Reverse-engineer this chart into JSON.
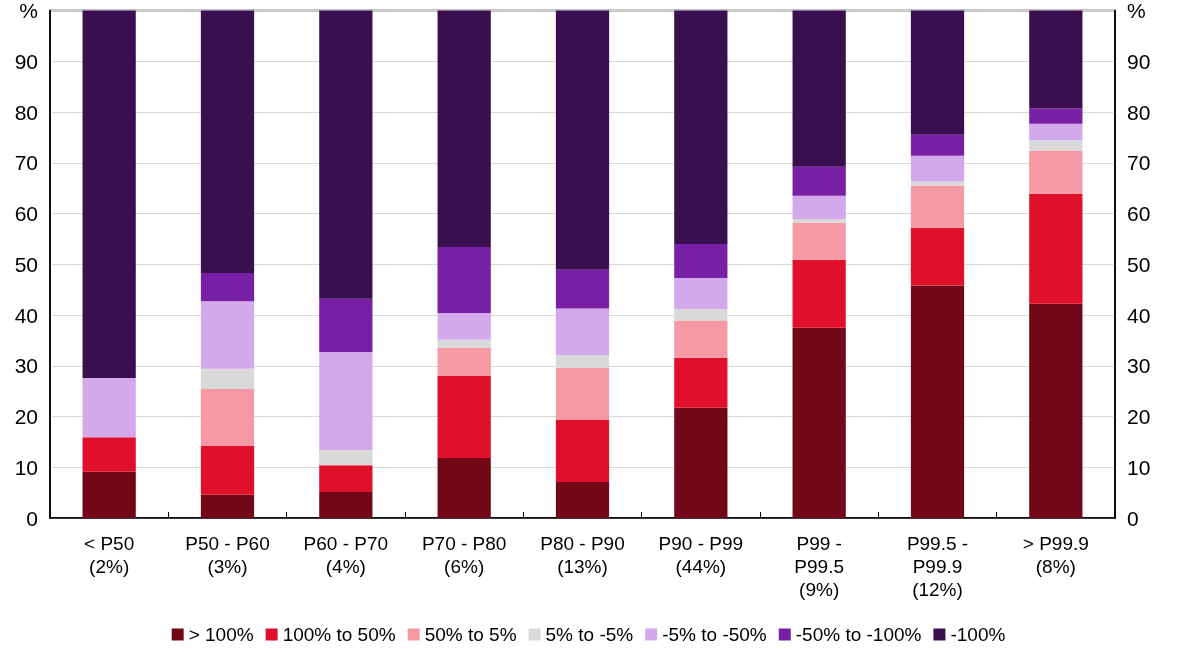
{
  "chart_data": {
    "type": "bar",
    "stacked": true,
    "categories": [
      "< P50\n(2%)",
      "P50 - P60\n(3%)",
      "P60 - P70\n(4%)",
      "P70 - P80\n(6%)",
      "P80 - P90\n(13%)",
      "P90 - P99\n(44%)",
      "P99 -\nP99.5\n(9%)",
      "P99.5 -\nP99.9\n(12%)",
      "> P99.9\n(8%)"
    ],
    "series": [
      {
        "name": "> 100%",
        "color": "#720817",
        "values": [
          9.1,
          4.6,
          5.1,
          11.8,
          7.1,
          21.7,
          37.5,
          45.8,
          42.2
        ]
      },
      {
        "name": "100% to 50%",
        "color": "#e0102a",
        "values": [
          6.8,
          9.6,
          5.3,
          16.2,
          12.2,
          9.9,
          13.4,
          11.4,
          21.7
        ]
      },
      {
        "name": "50% to 5%",
        "color": "#f59aa5",
        "values": [
          0,
          11.2,
          0,
          5.6,
          10.3,
          7.3,
          7.3,
          8.3,
          8.5
        ]
      },
      {
        "name": "5% to -5%",
        "color": "#d9d9d9",
        "values": [
          0,
          4.0,
          3.0,
          1.5,
          2.5,
          2.3,
          0.7,
          0.8,
          2.0
        ]
      },
      {
        "name": "-5% to -50%",
        "color": "#d4a9ec",
        "values": [
          11.7,
          13.3,
          19.3,
          5.3,
          9.2,
          6.1,
          4.6,
          5.1,
          3.3
        ]
      },
      {
        "name": "-50% to -100%",
        "color": "#7720a6",
        "values": [
          0,
          5.6,
          10.5,
          13.0,
          7.6,
          6.7,
          5.7,
          4.1,
          3.0
        ]
      },
      {
        "name": "-100%",
        "color": "#3a0f50",
        "values": [
          72.4,
          51.7,
          56.8,
          46.6,
          51.1,
          46.0,
          30.8,
          24.5,
          19.3
        ]
      }
    ],
    "ylim": [
      0,
      100
    ],
    "yticks": [
      0,
      10,
      20,
      30,
      40,
      50,
      60,
      70,
      80,
      90,
      {
        "value": 100,
        "label": "%"
      }
    ],
    "y2lim": [
      0,
      100
    ],
    "y2ticks": [
      0,
      10,
      20,
      30,
      40,
      50,
      60,
      70,
      80,
      90,
      {
        "value": 100,
        "label": "%"
      }
    ],
    "grid": "y",
    "legend": "bottom"
  }
}
